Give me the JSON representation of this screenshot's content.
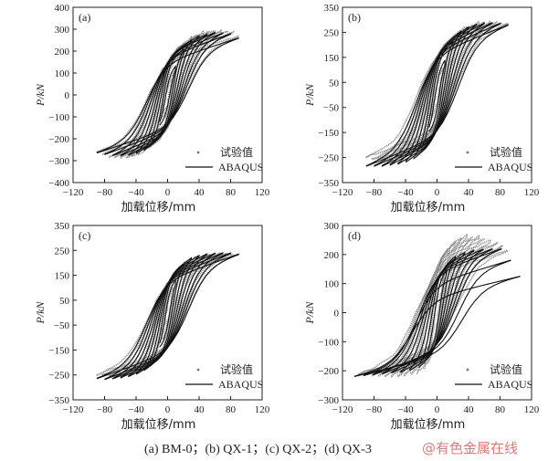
{
  "chart_data": [
    {
      "type": "line",
      "panel_label": "(a)",
      "xlabel": "加载位移/mm",
      "ylabel": "P/kN",
      "xlim": [
        -120,
        120
      ],
      "ylim": [
        -400,
        400
      ],
      "xticks": [
        -120,
        -80,
        -40,
        0,
        40,
        80,
        120
      ],
      "yticks": [
        -400,
        -300,
        -200,
        -100,
        0,
        100,
        200,
        300,
        400
      ],
      "legend": [
        "试验值",
        "ABAQUS"
      ],
      "legend_position": "bottom-right",
      "series": [
        {
          "style": "scatter-gray",
          "label_ref": 0,
          "envelope": {
            "pos": [
              [
                0,
                0
              ],
              [
                10,
                140
              ],
              [
                20,
                220
              ],
              [
                30,
                260
              ],
              [
                45,
                285
              ],
              [
                60,
                295
              ],
              [
                80,
                290
              ],
              [
                90,
                270
              ]
            ],
            "neg": [
              [
                0,
                0
              ],
              [
                -10,
                -150
              ],
              [
                -20,
                -230
              ],
              [
                -35,
                -270
              ],
              [
                -55,
                -290
              ],
              [
                -75,
                -285
              ],
              [
                -90,
                -260
              ]
            ]
          },
          "peak": 310
        },
        {
          "style": "line-black",
          "label_ref": 1,
          "envelope": {
            "pos": [
              [
                0,
                0
              ],
              [
                12,
                160
              ],
              [
                25,
                240
              ],
              [
                40,
                270
              ],
              [
                60,
                285
              ],
              [
                80,
                280
              ],
              [
                90,
                260
              ]
            ],
            "neg": [
              [
                0,
                0
              ],
              [
                -12,
                -170
              ],
              [
                -25,
                -245
              ],
              [
                -45,
                -275
              ],
              [
                -65,
                -280
              ],
              [
                -85,
                -270
              ],
              [
                -90,
                -265
              ]
            ]
          },
          "peak": 300
        }
      ]
    },
    {
      "type": "line",
      "panel_label": "(b)",
      "xlabel": "加载位移/mm",
      "ylabel": "P/kN",
      "xlim": [
        -120,
        120
      ],
      "ylim": [
        -350,
        350
      ],
      "xticks": [
        -120,
        -80,
        -40,
        0,
        40,
        80,
        120
      ],
      "yticks": [
        -350,
        -250,
        -150,
        -50,
        50,
        150,
        250,
        350
      ],
      "legend": [
        "试验值",
        "ABAQUS"
      ],
      "legend_position": "bottom-right",
      "series": [
        {
          "style": "scatter-gray",
          "label_ref": 0,
          "envelope": {
            "pos": [
              [
                0,
                0
              ],
              [
                10,
                150
              ],
              [
                20,
                230
              ],
              [
                35,
                270
              ],
              [
                55,
                290
              ],
              [
                75,
                290
              ],
              [
                90,
                285
              ]
            ],
            "neg": [
              [
                0,
                0
              ],
              [
                -10,
                -140
              ],
              [
                -20,
                -210
              ],
              [
                -40,
                -250
              ],
              [
                -60,
                -265
              ],
              [
                -80,
                -260
              ],
              [
                -90,
                -250
              ]
            ]
          },
          "peak": 300
        },
        {
          "style": "line-black",
          "label_ref": 1,
          "envelope": {
            "pos": [
              [
                0,
                0
              ],
              [
                12,
                170
              ],
              [
                25,
                245
              ],
              [
                45,
                280
              ],
              [
                65,
                290
              ],
              [
                85,
                285
              ],
              [
                90,
                280
              ]
            ],
            "neg": [
              [
                0,
                0
              ],
              [
                -12,
                -180
              ],
              [
                -25,
                -250
              ],
              [
                -45,
                -275
              ],
              [
                -70,
                -285
              ],
              [
                -90,
                -285
              ]
            ]
          },
          "peak": 295
        }
      ]
    },
    {
      "type": "line",
      "panel_label": "(c)",
      "xlabel": "加载位移/mm",
      "ylabel": "P/kN",
      "xlim": [
        -120,
        120
      ],
      "ylim": [
        -350,
        350
      ],
      "xticks": [
        -120,
        -80,
        -40,
        0,
        40,
        80,
        120
      ],
      "yticks": [
        -350,
        -250,
        -150,
        -50,
        50,
        150,
        250,
        350
      ],
      "legend": [
        "试验值",
        "ABAQUS"
      ],
      "legend_position": "bottom-right",
      "series": [
        {
          "style": "scatter-gray",
          "label_ref": 0,
          "envelope": {
            "pos": [
              [
                0,
                0
              ],
              [
                10,
                140
              ],
              [
                20,
                200
              ],
              [
                35,
                225
              ],
              [
                55,
                235
              ],
              [
                75,
                240
              ],
              [
                90,
                235
              ]
            ],
            "neg": [
              [
                0,
                0
              ],
              [
                -10,
                -150
              ],
              [
                -20,
                -210
              ],
              [
                -40,
                -245
              ],
              [
                -60,
                -260
              ],
              [
                -80,
                -255
              ],
              [
                -90,
                -250
              ]
            ]
          },
          "peak": 245
        },
        {
          "style": "line-black",
          "label_ref": 1,
          "envelope": {
            "pos": [
              [
                0,
                0
              ],
              [
                12,
                160
              ],
              [
                25,
                215
              ],
              [
                45,
                235
              ],
              [
                65,
                240
              ],
              [
                85,
                240
              ],
              [
                90,
                235
              ]
            ],
            "neg": [
              [
                0,
                0
              ],
              [
                -12,
                -170
              ],
              [
                -25,
                -225
              ],
              [
                -45,
                -255
              ],
              [
                -65,
                -265
              ],
              [
                -85,
                -270
              ],
              [
                -90,
                -265
              ]
            ]
          },
          "peak": 245
        }
      ]
    },
    {
      "type": "line",
      "panel_label": "(d)",
      "xlabel": "加载位移/mm",
      "ylabel": "P/kN",
      "xlim": [
        -120,
        120
      ],
      "ylim": [
        -300,
        300
      ],
      "xticks": [
        -120,
        -80,
        -40,
        0,
        40,
        80,
        120
      ],
      "yticks": [
        -300,
        -200,
        -100,
        0,
        100,
        200,
        300
      ],
      "legend": [
        "试验值",
        "ABAQUS"
      ],
      "legend_position": "bottom-right",
      "series": [
        {
          "style": "scatter-gray",
          "label_ref": 0,
          "envelope": {
            "pos": [
              [
                0,
                0
              ],
              [
                10,
                170
              ],
              [
                20,
                240
              ],
              [
                35,
                265
              ],
              [
                55,
                260
              ],
              [
                75,
                240
              ],
              [
                90,
                215
              ]
            ],
            "neg": [
              [
                0,
                0
              ],
              [
                -10,
                -160
              ],
              [
                -20,
                -205
              ],
              [
                -40,
                -215
              ],
              [
                -60,
                -220
              ],
              [
                -80,
                -215
              ],
              [
                -100,
                -210
              ]
            ]
          },
          "peak": 280
        },
        {
          "style": "line-black",
          "label_ref": 1,
          "envelope": {
            "pos": [
              [
                0,
                0
              ],
              [
                12,
                150
              ],
              [
                25,
                200
              ],
              [
                45,
                215
              ],
              [
                65,
                220
              ],
              [
                85,
                220
              ],
              [
                105,
                125
              ]
            ],
            "neg": [
              [
                0,
                0
              ],
              [
                -12,
                -150
              ],
              [
                -25,
                -195
              ],
              [
                -45,
                -205
              ],
              [
                -65,
                -210
              ],
              [
                -85,
                -215
              ],
              [
                -105,
                -220
              ]
            ]
          },
          "peak": 230
        }
      ]
    }
  ],
  "caption": "(a) BM-0；(b) QX-1；(c) QX-2；(d) QX-3",
  "watermark": "@有色金属在线",
  "colors": {
    "test": "#777777",
    "abaqus": "#111111",
    "axis": "#222222"
  }
}
